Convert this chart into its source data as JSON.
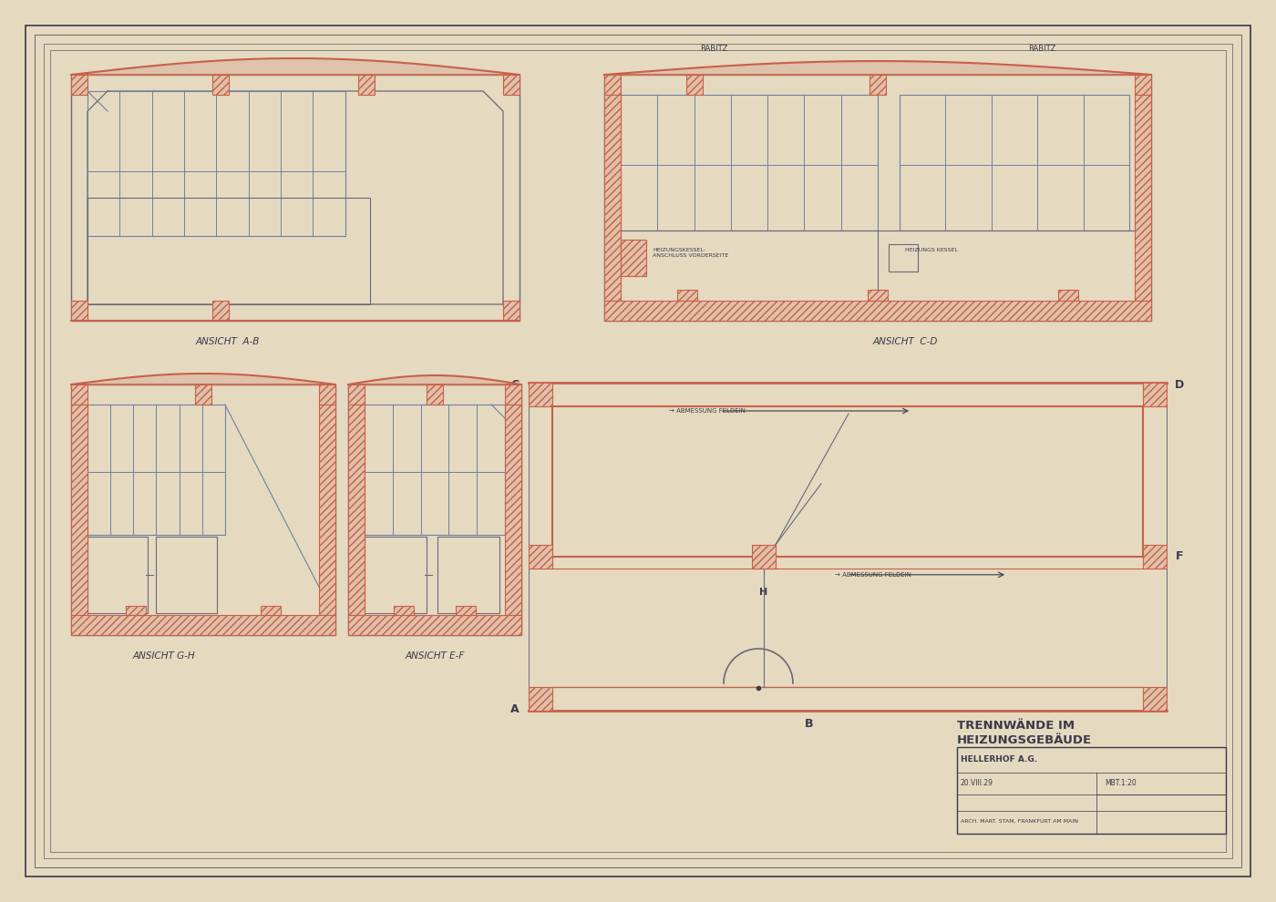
{
  "bg_color": "#e5d9c0",
  "paper_color": "#ede0c4",
  "line_color": "#6a6878",
  "red_color": "#c8604a",
  "dark_line": "#3a3a4a",
  "blue_line": "#7080a0",
  "title_line1": "TRENNWÄNDE IM",
  "title_line2": "HEIZUNGSGEBÄUDE",
  "subtitle_text": "HELLERHOF A.G.",
  "date_text": "20.VIII.29",
  "scale_text": "MBT.1:20",
  "arch_text": "ARCH. MART. STAM, FRANKFURT AM MAIN",
  "label_ab": "ANSICHT  A-B",
  "label_cd": "ANSICHT  C-D",
  "label_gh": "ANSICHT G-H",
  "label_ef": "ANSICHT E-F",
  "rabitz_left": "RABITZ",
  "rabitz_right": "RABITZ"
}
